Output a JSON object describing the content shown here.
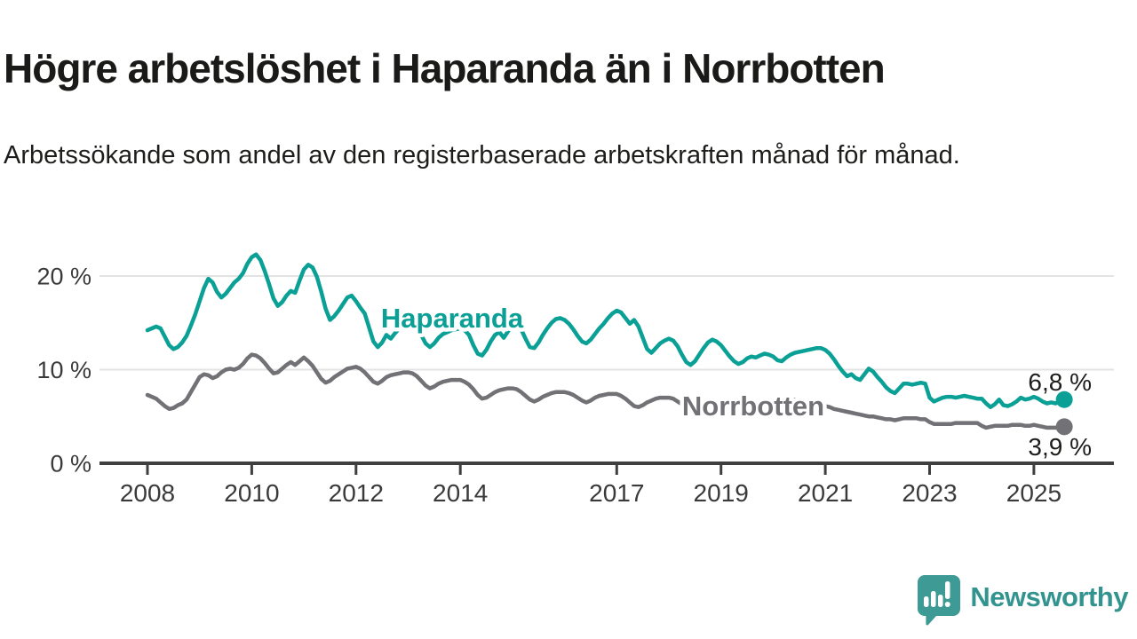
{
  "header": {
    "title": "Högre arbetslöshet i Haparanda än i Norrbotten",
    "subtitle": "Arbetssökande som andel av den registerbaserade arbetskraften månad för månad."
  },
  "branding": {
    "wordmark": "Newsworthy",
    "icon": "newsworthy-speech-bubble-chart-icon",
    "icon_color": "#3e9a94",
    "wordmark_color": "#33948f"
  },
  "chart_data": {
    "type": "line",
    "title": "Högre arbetslöshet i Haparanda än i Norrbotten",
    "xlabel": "",
    "ylabel": "",
    "x_unit": "month",
    "x_start": "2008-01",
    "x_end": "2025-08",
    "ylim": [
      0,
      23
    ],
    "grid": "horizontal",
    "legend": "inline-labels",
    "yticks": [
      {
        "label": "0 %",
        "value": 0
      },
      {
        "label": "10 %",
        "value": 10
      },
      {
        "label": "20 %",
        "value": 20
      }
    ],
    "xticks": [
      2008,
      2010,
      2012,
      2014,
      2017,
      2019,
      2021,
      2023,
      2025
    ],
    "series": [
      {
        "name": "Haparanda",
        "color": "#0aa096",
        "end_label": "6,8 %",
        "last_value": 6.8,
        "values": [
          14.2,
          14.4,
          14.6,
          14.4,
          13.5,
          12.6,
          12.2,
          12.4,
          12.9,
          13.6,
          14.7,
          15.9,
          17.3,
          18.7,
          19.7,
          19.3,
          18.3,
          17.7,
          18.1,
          18.7,
          19.3,
          19.7,
          20.3,
          21.3,
          22.0,
          22.3,
          21.7,
          20.5,
          19.1,
          17.6,
          16.8,
          17.2,
          17.9,
          18.4,
          18.2,
          19.5,
          20.7,
          21.2,
          20.9,
          19.9,
          18.3,
          16.5,
          15.3,
          15.7,
          16.3,
          17.0,
          17.7,
          17.9,
          17.3,
          16.6,
          16.0,
          14.5,
          13.0,
          12.4,
          12.9,
          13.7,
          13.3,
          13.9,
          14.4,
          14.6,
          14.8,
          14.9,
          14.4,
          13.7,
          12.8,
          12.4,
          12.8,
          13.4,
          13.8,
          14.0,
          14.2,
          14.3,
          14.4,
          14.2,
          13.7,
          12.6,
          11.7,
          11.5,
          12.1,
          13.0,
          13.7,
          14.0,
          13.4,
          14.1,
          14.6,
          14.8,
          14.3,
          13.3,
          12.4,
          12.3,
          12.9,
          13.7,
          14.4,
          15.0,
          15.4,
          15.5,
          15.3,
          14.9,
          14.3,
          13.6,
          13.0,
          12.8,
          13.2,
          13.8,
          14.4,
          14.9,
          15.5,
          16.0,
          16.3,
          16.1,
          15.5,
          14.9,
          15.3,
          14.6,
          13.4,
          12.2,
          11.8,
          12.3,
          12.8,
          13.1,
          13.3,
          13.1,
          12.5,
          11.6,
          10.8,
          10.5,
          10.9,
          11.6,
          12.3,
          12.9,
          13.2,
          13.0,
          12.6,
          12.0,
          11.4,
          10.9,
          10.6,
          10.8,
          11.2,
          11.4,
          11.3,
          11.5,
          11.7,
          11.6,
          11.4,
          11.0,
          10.9,
          11.3,
          11.6,
          11.8,
          11.9,
          12.0,
          12.1,
          12.2,
          12.3,
          12.3,
          12.1,
          11.7,
          11.1,
          10.4,
          9.8,
          9.3,
          9.5,
          9.1,
          8.9,
          9.5,
          10.1,
          9.8,
          9.2,
          8.7,
          8.1,
          7.7,
          7.5,
          8.0,
          8.5,
          8.5,
          8.4,
          8.5,
          8.6,
          8.5,
          7.0,
          6.6,
          6.8,
          7.0,
          7.1,
          7.1,
          7.0,
          7.1,
          7.2,
          7.1,
          7.0,
          6.9,
          6.9,
          6.4,
          6.0,
          6.3,
          6.8,
          6.2,
          6.1,
          6.3,
          6.6,
          7.0,
          6.8,
          6.9,
          7.1,
          6.9,
          6.6,
          6.4,
          6.5,
          6.4,
          6.6,
          6.8
        ]
      },
      {
        "name": "Norrbotten",
        "color": "#717176",
        "end_label": "3,9 %",
        "last_value": 3.9,
        "values": [
          7.3,
          7.1,
          6.9,
          6.5,
          6.1,
          5.8,
          5.9,
          6.2,
          6.4,
          6.8,
          7.6,
          8.4,
          9.2,
          9.5,
          9.4,
          9.1,
          9.3,
          9.7,
          10.0,
          10.1,
          10.0,
          10.2,
          10.6,
          11.2,
          11.6,
          11.5,
          11.2,
          10.7,
          10.1,
          9.6,
          9.7,
          10.1,
          10.5,
          10.8,
          10.5,
          10.9,
          11.3,
          10.9,
          10.4,
          9.7,
          9.0,
          8.6,
          8.8,
          9.2,
          9.5,
          9.8,
          10.1,
          10.2,
          10.3,
          10.1,
          9.7,
          9.2,
          8.7,
          8.5,
          8.8,
          9.2,
          9.4,
          9.5,
          9.6,
          9.7,
          9.7,
          9.6,
          9.3,
          8.8,
          8.3,
          8.0,
          8.2,
          8.5,
          8.7,
          8.8,
          8.9,
          8.9,
          8.9,
          8.7,
          8.4,
          7.9,
          7.3,
          6.9,
          7.0,
          7.3,
          7.6,
          7.8,
          7.9,
          8.0,
          8.0,
          7.9,
          7.6,
          7.2,
          6.8,
          6.6,
          6.8,
          7.1,
          7.3,
          7.5,
          7.6,
          7.6,
          7.6,
          7.5,
          7.3,
          7.0,
          6.7,
          6.5,
          6.7,
          7.0,
          7.2,
          7.3,
          7.4,
          7.4,
          7.4,
          7.2,
          6.9,
          6.5,
          6.1,
          6.0,
          6.2,
          6.5,
          6.7,
          6.9,
          7.0,
          7.0,
          7.0,
          6.9,
          6.6,
          6.3,
          6.0,
          5.9,
          6.0,
          6.2,
          6.4,
          6.5,
          6.6,
          6.6,
          6.5,
          6.4,
          6.2,
          6.0,
          5.8,
          5.7,
          5.9,
          6.0,
          6.1,
          6.2,
          6.2,
          6.3,
          6.3,
          6.2,
          6.4,
          6.7,
          6.8,
          6.8,
          6.7,
          6.6,
          6.5,
          6.4,
          6.3,
          6.2,
          6.1,
          6.0,
          5.8,
          5.7,
          5.6,
          5.5,
          5.4,
          5.3,
          5.2,
          5.1,
          5.0,
          5.0,
          4.9,
          4.8,
          4.7,
          4.7,
          4.6,
          4.7,
          4.8,
          4.8,
          4.8,
          4.8,
          4.7,
          4.7,
          4.4,
          4.2,
          4.2,
          4.2,
          4.2,
          4.2,
          4.3,
          4.3,
          4.3,
          4.3,
          4.3,
          4.3,
          4.0,
          3.8,
          3.9,
          4.0,
          4.0,
          4.0,
          4.0,
          4.1,
          4.1,
          4.1,
          4.0,
          4.0,
          4.1,
          4.0,
          3.9,
          3.8,
          3.8,
          3.8,
          3.9,
          3.9
        ]
      }
    ]
  }
}
